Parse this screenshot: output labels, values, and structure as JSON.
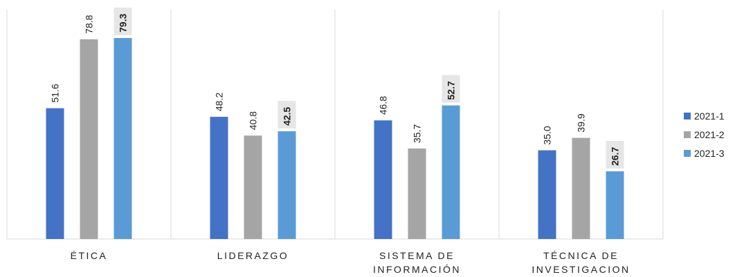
{
  "chart_data": {
    "type": "bar",
    "categories": [
      [
        "ÉTICA"
      ],
      [
        "LIDERAZGO"
      ],
      [
        "SISTEMA DE",
        "INFORMACIÓN"
      ],
      [
        "TÉCNICA DE",
        "INVESTIGACION"
      ]
    ],
    "series": [
      {
        "name": "2021-1",
        "color": "#4472C4",
        "values": [
          51.6,
          48.2,
          46.8,
          35.0
        ],
        "labels": [
          "51.6",
          "48.2",
          "46.8",
          "35.0"
        ]
      },
      {
        "name": "2021-2",
        "color": "#A5A5A5",
        "values": [
          78.8,
          40.8,
          35.7,
          39.9
        ],
        "labels": [
          "78.8",
          "40.8",
          "35.7",
          "39.9"
        ]
      },
      {
        "name": "2021-3",
        "color": "#5B9BD5",
        "values": [
          79.3,
          42.5,
          52.7,
          26.7
        ],
        "labels": [
          "79.3",
          "42.5",
          "52.7",
          "26.7"
        ],
        "highlight_labels": true
      }
    ],
    "ylim": [
      0,
      100
    ],
    "grid": "vertical category separators",
    "legend": "right"
  }
}
